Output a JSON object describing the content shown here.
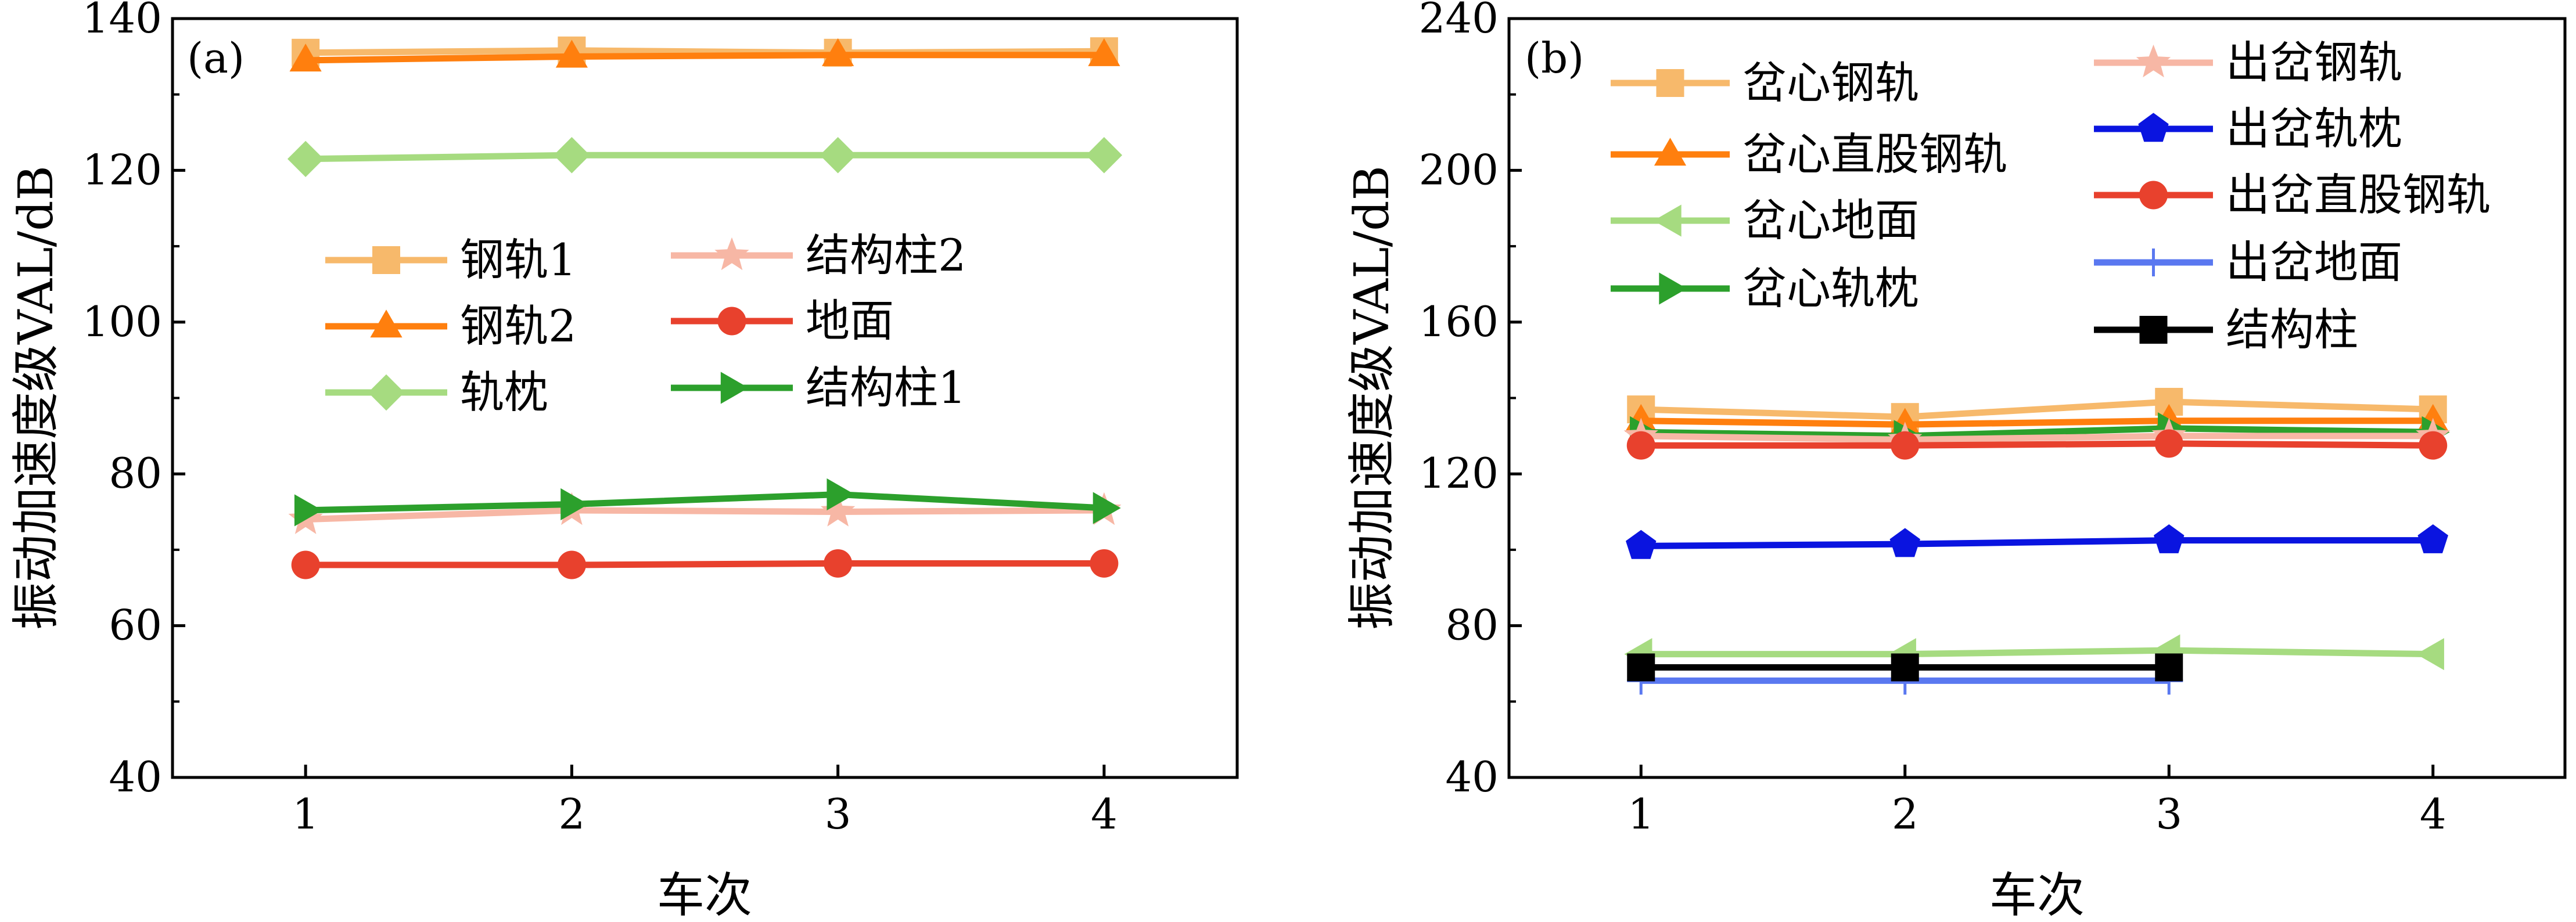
{
  "chart_data": [
    {
      "type": "line",
      "panel_label": "(a)",
      "xlabel": "车次",
      "ylabel": "振动加速度级VAL/dB",
      "x": [
        1,
        2,
        3,
        4
      ],
      "xlim": [
        0.5,
        4.5
      ],
      "ylim": [
        40,
        140
      ],
      "xticks": [
        "1",
        "2",
        "3",
        "4"
      ],
      "yticks": [
        "40",
        "60",
        "80",
        "100",
        "120",
        "140"
      ],
      "legend_placement": "center-left",
      "series": [
        {
          "name": "钢轨1",
          "values": [
            135.5,
            135.8,
            135.5,
            135.7
          ],
          "color": "#f7b96b",
          "marker": "square"
        },
        {
          "name": "钢轨2",
          "values": [
            134.5,
            135.0,
            135.2,
            135.2
          ],
          "color": "#ff7f0e",
          "marker": "triangle-up"
        },
        {
          "name": "轨枕",
          "values": [
            121.5,
            122.0,
            122.0,
            122.0
          ],
          "color": "#a6db80",
          "marker": "diamond"
        },
        {
          "name": "结构柱2",
          "values": [
            74.0,
            75.2,
            75.0,
            75.2
          ],
          "color": "#f7b7a5",
          "marker": "star"
        },
        {
          "name": "地面",
          "values": [
            68.0,
            68.0,
            68.2,
            68.2
          ],
          "color": "#e8412d",
          "marker": "circle"
        },
        {
          "name": "结构柱1",
          "values": [
            75.2,
            76.0,
            77.3,
            75.5
          ],
          "color": "#2ca02c",
          "marker": "triangle-right"
        }
      ]
    },
    {
      "type": "line",
      "panel_label": "(b)",
      "xlabel": "车次",
      "ylabel": "振动加速度级VAL/dB",
      "x": [
        1,
        2,
        3,
        4
      ],
      "xlim": [
        0.5,
        4.5
      ],
      "ylim": [
        40,
        240
      ],
      "xticks": [
        "1",
        "2",
        "3",
        "4"
      ],
      "yticks": [
        "40",
        "80",
        "120",
        "160",
        "200",
        "240"
      ],
      "legend_placement": "top",
      "series": [
        {
          "name": "岔心钢轨",
          "x": [
            1,
            2,
            3,
            4
          ],
          "values": [
            137,
            135,
            139,
            137
          ],
          "color": "#f7b96b",
          "marker": "square"
        },
        {
          "name": "岔心直股钢轨",
          "x": [
            1,
            2,
            3,
            4
          ],
          "values": [
            134,
            133,
            134,
            134
          ],
          "color": "#ff7f0e",
          "marker": "triangle-up"
        },
        {
          "name": "岔心地面",
          "x": [
            1,
            2,
            3,
            4
          ],
          "values": [
            72.5,
            72.5,
            73.5,
            72.5
          ],
          "color": "#a6db80",
          "marker": "triangle-left"
        },
        {
          "name": "岔心轨枕",
          "x": [
            1,
            2,
            3,
            4
          ],
          "values": [
            131,
            130,
            132,
            131
          ],
          "color": "#2ca02c",
          "marker": "triangle-right"
        },
        {
          "name": "出岔钢轨",
          "x": [
            1,
            2,
            3,
            4
          ],
          "values": [
            130,
            129,
            130,
            130
          ],
          "color": "#f7b7a5",
          "marker": "star"
        },
        {
          "name": "出岔轨枕",
          "x": [
            1,
            2,
            3,
            4
          ],
          "values": [
            101,
            101.5,
            102.5,
            102.5
          ],
          "color": "#0a14e0",
          "marker": "pentagon"
        },
        {
          "name": "出岔直股钢轨",
          "x": [
            1,
            2,
            3,
            4
          ],
          "values": [
            127.5,
            127.5,
            128,
            127.5
          ],
          "color": "#e8412d",
          "marker": "circle"
        },
        {
          "name": "出岔地面",
          "x": [
            1,
            2,
            3
          ],
          "values": [
            65.5,
            65.5,
            65.5
          ],
          "color": "#5a78f0",
          "marker": "plus"
        },
        {
          "name": "结构柱",
          "x": [
            1,
            2,
            3
          ],
          "values": [
            69,
            69,
            69
          ],
          "color": "#000000",
          "marker": "square"
        }
      ]
    }
  ]
}
